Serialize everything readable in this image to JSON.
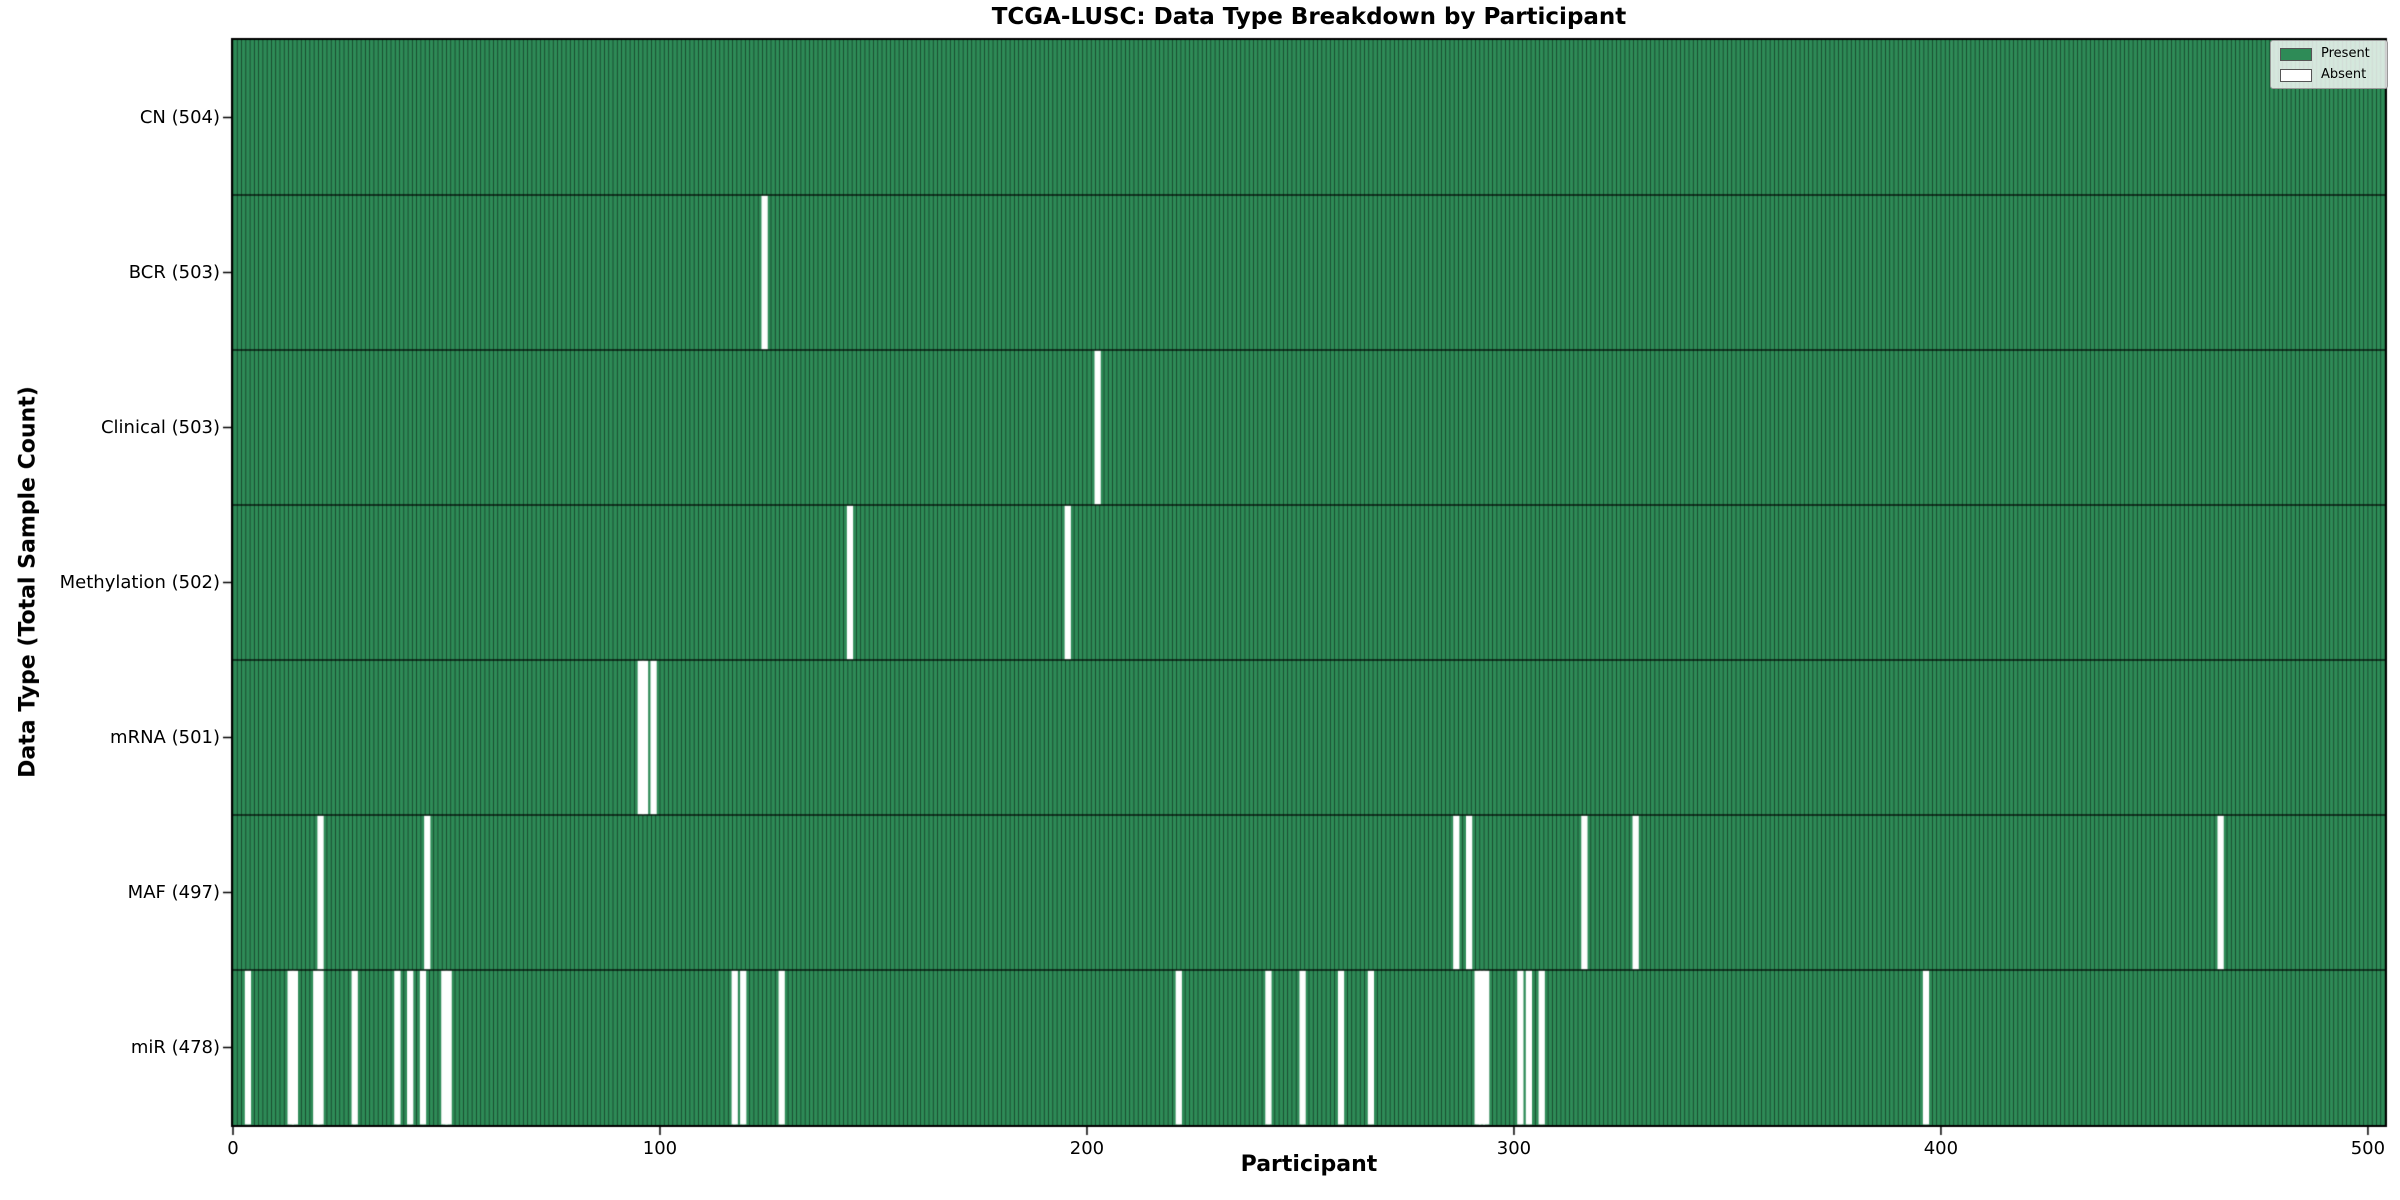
{
  "chart_data": {
    "type": "heatmap",
    "title": "TCGA-LUSC: Data Type Breakdown by Participant",
    "xlabel": "Participant",
    "ylabel": "Data Type (Total Sample Count)",
    "n_participants": 504,
    "xlim": [
      0,
      504
    ],
    "x_ticks": [
      0,
      100,
      200,
      300,
      400,
      500
    ],
    "grid": false,
    "legend": {
      "position": "upper right",
      "entries": [
        {
          "label": "Present",
          "color": "#2e8b57"
        },
        {
          "label": "Absent",
          "color": "#ffffff"
        }
      ]
    },
    "colors": {
      "present": "#2e8b57",
      "absent": "#ffffff",
      "bar_edge": "rgba(0,0,0,0.55)",
      "row_divider": "#000000",
      "plot_border": "#000000"
    },
    "rows": [
      {
        "label": "CN (504)",
        "data_type": "CN",
        "present_count": 504,
        "absent_participants": []
      },
      {
        "label": "BCR (503)",
        "data_type": "BCR",
        "present_count": 503,
        "absent_participants": [
          124
        ]
      },
      {
        "label": "Clinical (503)",
        "data_type": "Clinical",
        "present_count": 503,
        "absent_participants": [
          202
        ]
      },
      {
        "label": "Methylation (502)",
        "data_type": "Methylation",
        "present_count": 502,
        "absent_participants": [
          144,
          195
        ]
      },
      {
        "label": "mRNA (501)",
        "data_type": "mRNA",
        "present_count": 501,
        "absent_participants": [
          95,
          96,
          98
        ]
      },
      {
        "label": "MAF (497)",
        "data_type": "MAF",
        "present_count": 497,
        "absent_participants": [
          20,
          45,
          286,
          289,
          316,
          328,
          465
        ]
      },
      {
        "label": "miR (478)",
        "data_type": "miR",
        "present_count": 478,
        "absent_participants": [
          3,
          13,
          14,
          19,
          20,
          28,
          38,
          41,
          44,
          49,
          50,
          117,
          119,
          128,
          221,
          242,
          250,
          259,
          266,
          291,
          292,
          293,
          301,
          303,
          306,
          396
        ]
      }
    ]
  }
}
